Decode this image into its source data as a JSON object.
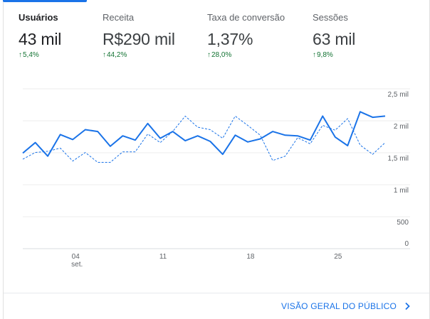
{
  "metrics": [
    {
      "label": "Usuários",
      "value": "43 mil",
      "change": "5,4%",
      "active": true
    },
    {
      "label": "Receita",
      "value": "R$290 mil",
      "change": "44,2%",
      "active": false
    },
    {
      "label": "Taxa de conversão",
      "value": "1,37%",
      "change": "28,0%",
      "active": false
    },
    {
      "label": "Sessões",
      "value": "63 mil",
      "change": "9,8%",
      "active": false
    }
  ],
  "colors": {
    "accent": "#1a73e8",
    "positive": "#137333"
  },
  "chart_data": {
    "type": "line",
    "y_ticks": [
      {
        "label": "2,5 mil",
        "value": 2500
      },
      {
        "label": "2 mil",
        "value": 2000
      },
      {
        "label": "1,5 mil",
        "value": 1500
      },
      {
        "label": "1 mil",
        "value": 1000
      },
      {
        "label": "500",
        "value": 500
      },
      {
        "label": "0",
        "value": 0
      }
    ],
    "ylim": [
      0,
      2500
    ],
    "x_ticks": [
      {
        "label": "04",
        "sublabel": "set.",
        "index": 4
      },
      {
        "label": "11",
        "sublabel": "",
        "index": 11
      },
      {
        "label": "18",
        "sublabel": "",
        "index": 18
      },
      {
        "label": "25",
        "sublabel": "",
        "index": 25
      }
    ],
    "grid": true,
    "series": [
      {
        "style": "solid",
        "values": [
          1550,
          1720,
          1500,
          1850,
          1770,
          1930,
          1900,
          1660,
          1830,
          1760,
          2030,
          1790,
          1900,
          1750,
          1830,
          1740,
          1530,
          1840,
          1730,
          1780,
          1900,
          1840,
          1830,
          1760,
          2150,
          1810,
          1670,
          2220,
          2130,
          2150
        ]
      },
      {
        "style": "dashed",
        "values": [
          1450,
          1560,
          1580,
          1630,
          1420,
          1560,
          1400,
          1400,
          1570,
          1570,
          1860,
          1720,
          1900,
          2150,
          1970,
          1930,
          1790,
          2150,
          2000,
          1840,
          1430,
          1500,
          1800,
          1700,
          2000,
          1920,
          2110,
          1680,
          1530,
          1720
        ]
      }
    ]
  },
  "footer": {
    "link_label": "VISÃO GERAL DO PÚBLICO"
  }
}
